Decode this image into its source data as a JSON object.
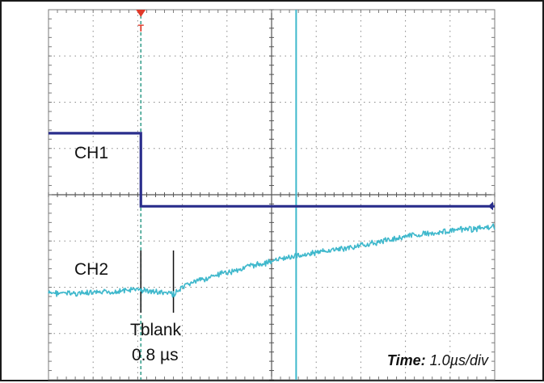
{
  "chart_data": {
    "type": "line",
    "title": "",
    "xlabel": "",
    "ylabel": "",
    "divisions": {
      "x": 10,
      "y": 8
    },
    "xlim": [
      0,
      10
    ],
    "ylim": [
      -4,
      4
    ],
    "grid": true,
    "series": [
      {
        "name": "CH1",
        "color": "#2a2e8c",
        "segments": [
          {
            "x": [
              0,
              2.07
            ],
            "y": [
              1.33,
              1.33
            ]
          },
          {
            "x": [
              2.07,
              10
            ],
            "y": [
              -0.25,
              -0.25
            ]
          }
        ]
      },
      {
        "name": "CH2",
        "color": "#3fb8cc",
        "x": [
          0,
          1.0,
          2.0,
          2.8,
          3.2,
          4.5,
          5.5,
          7.0,
          8.0,
          9.0,
          10.0
        ],
        "y": [
          -2.13,
          -2.13,
          -2.05,
          -2.15,
          -1.9,
          -1.55,
          -1.33,
          -1.1,
          -0.9,
          -0.78,
          -0.7
        ]
      }
    ],
    "markers": {
      "trigger_x": 2.07,
      "trigger_color": "#3aa08e",
      "trigger_symbol": "T",
      "cursor_x": 5.55,
      "cursor_color": "#3fb8cc",
      "level_color": "#2a2e8c",
      "blank_start_x": 2.07,
      "blank_end_x": 2.8
    },
    "annotations": {
      "ch1_label": "CH1",
      "ch2_label": "CH2",
      "blank_name": "Tblank",
      "blank_value": "0.8 µs",
      "time_bold": "Time:",
      "time_value": " 1.0µs/div"
    }
  }
}
